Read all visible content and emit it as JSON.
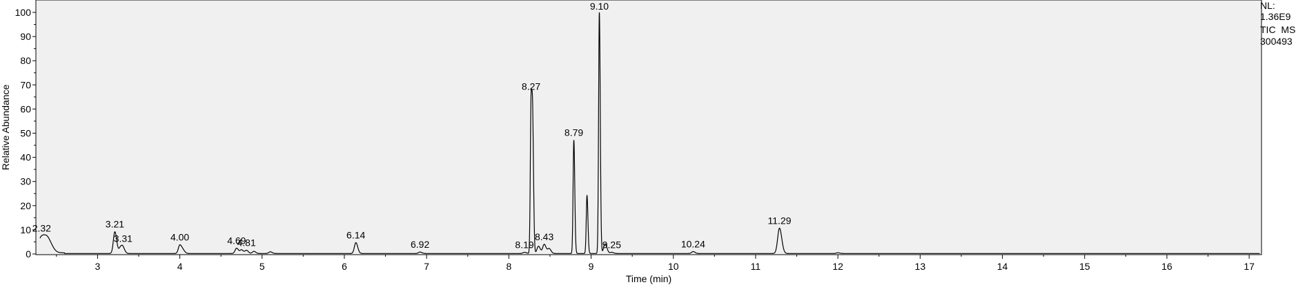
{
  "instrument_info": {
    "nl_label": "NL:",
    "nl_value": "1.36E9",
    "scan_filter": "TIC  MS",
    "sample": "300493"
  },
  "chart_data": {
    "type": "line",
    "title": "",
    "xlabel": "Time (min)",
    "ylabel": "Relative Abundance",
    "xlim": [
      2.25,
      17.15
    ],
    "ylim": [
      0,
      100
    ],
    "x_ticks": [
      3,
      4,
      5,
      6,
      7,
      8,
      9,
      10,
      11,
      12,
      13,
      14,
      15,
      16,
      17
    ],
    "y_ticks": [
      0,
      10,
      20,
      30,
      40,
      50,
      60,
      70,
      80,
      90,
      100
    ],
    "grid": false,
    "colors": {
      "trace": "#000000",
      "plot_bg": "#f0f0f0",
      "integration": "#4caf50"
    },
    "peaks": [
      {
        "rt": 2.32,
        "height": 6.0,
        "label": "2.32"
      },
      {
        "rt": 3.21,
        "height": 9.0,
        "label": "3.21"
      },
      {
        "rt": 3.31,
        "height": 2.0,
        "label": "3.31"
      },
      {
        "rt": 4.0,
        "height": 3.5,
        "label": "4.00"
      },
      {
        "rt": 4.69,
        "height": 2.2,
        "label": "4.69"
      },
      {
        "rt": 4.81,
        "height": 1.3,
        "label": "4.81"
      },
      {
        "rt": 6.14,
        "height": 4.5,
        "label": "6.14"
      },
      {
        "rt": 6.92,
        "height": 0.6,
        "label": "6.92"
      },
      {
        "rt": 8.19,
        "height": 0.5,
        "label": "8.19"
      },
      {
        "rt": 8.27,
        "height": 62.0,
        "label": "8.27"
      },
      {
        "rt": 8.43,
        "height": 3.8,
        "label": "8.43"
      },
      {
        "rt": 8.79,
        "height": 47.0,
        "label": "8.79"
      },
      {
        "rt": 9.1,
        "height": 100.0,
        "label": "9.10"
      },
      {
        "rt": 9.25,
        "height": 0.5,
        "label": "9.25"
      },
      {
        "rt": 10.24,
        "height": 0.8,
        "label": "10.24"
      },
      {
        "rt": 11.29,
        "height": 10.5,
        "label": "11.29"
      }
    ],
    "unlabeled_peaks": [
      {
        "rt": 2.4,
        "height": 4.5
      },
      {
        "rt": 3.28,
        "height": 2.5
      },
      {
        "rt": 4.04,
        "height": 1.2
      },
      {
        "rt": 4.75,
        "height": 1.5
      },
      {
        "rt": 4.9,
        "height": 0.9
      },
      {
        "rt": 5.1,
        "height": 0.7
      },
      {
        "rt": 8.29,
        "height": 48.0
      },
      {
        "rt": 8.36,
        "height": 3.0
      },
      {
        "rt": 8.49,
        "height": 2.0
      },
      {
        "rt": 8.95,
        "height": 24.0
      },
      {
        "rt": 9.17,
        "height": 4.0
      },
      {
        "rt": 12.0,
        "height": 0.3
      }
    ]
  }
}
